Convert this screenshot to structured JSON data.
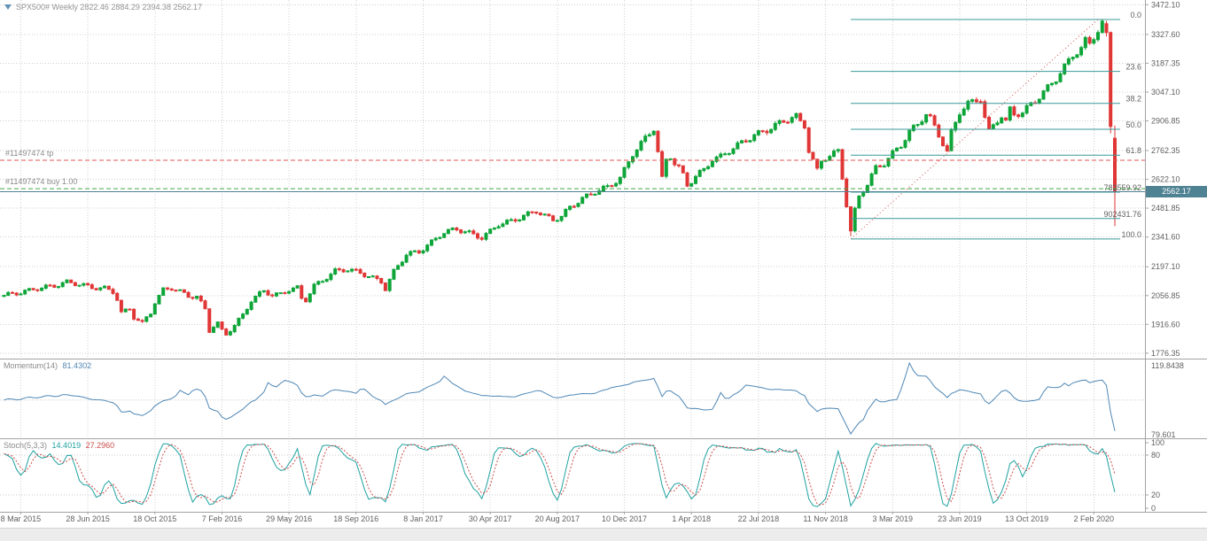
{
  "header": {
    "symbol_line": "SPX500# Weekly 2822.46 2884.29 2394.38 2562.17",
    "text_color": "#949494",
    "marker_color": "#6593b5"
  },
  "chart_data": {
    "type": "candlestick",
    "title": "SPX500# Weekly",
    "grid_color": "#cfcfcf",
    "separator_color": "#a3a3a3",
    "axis_text_color": "#606060",
    "price_axis": {
      "range_min": 1750,
      "range_max": 3495,
      "ticks": [
        "3472.10",
        "3327.60",
        "3187.35",
        "3047.10",
        "2906.85",
        "2762.35",
        "2622.10",
        "2481.85",
        "2341.60",
        "2197.10",
        "2056.85",
        "1916.60",
        "1776.35"
      ],
      "current_price": 2562.17,
      "current_tag": "2562.17",
      "tag_bg": "#4f8292"
    },
    "date_axis": {
      "labels": [
        "8 Mar 2015",
        "28 Jun 2015",
        "18 Oct 2015",
        "7 Feb 2016",
        "29 May 2016",
        "18 Sep 2016",
        "8 Jan 2017",
        "30 Apr 2017",
        "20 Aug 2017",
        "10 Dec 2017",
        "1 Apr 2018",
        "22 Jul 2018",
        "11 Nov 2018",
        "3 Mar 2019",
        "23 Jun 2019",
        "13 Oct 2019",
        "2 Feb 2020"
      ],
      "first_candle_index": 4,
      "index_step": 16
    },
    "candles": {
      "count": 266,
      "up_color": "#0ea539",
      "down_color": "#e03636",
      "last": {
        "open": 2822.46,
        "high": 2884.29,
        "low": 2394.38,
        "close": 2562.17
      },
      "final_candles": [
        [
          3380,
          3393.5,
          3318,
          3337
        ],
        [
          3337,
          3342,
          2846,
          2880
        ],
        [
          2822.46,
          2884.29,
          2394.38,
          2562.17
        ]
      ],
      "overrides": {
        "202": {
          "low": 2346
        }
      },
      "anchors": [
        [
          0,
          2058
        ],
        [
          4,
          2072
        ],
        [
          8,
          2092
        ],
        [
          12,
          2104
        ],
        [
          15,
          2122
        ],
        [
          18,
          2112
        ],
        [
          21,
          2096
        ],
        [
          24,
          2092
        ],
        [
          26,
          2076
        ],
        [
          27,
          2040
        ],
        [
          28,
          1972
        ],
        [
          30,
          1992
        ],
        [
          31,
          1952
        ],
        [
          33,
          1922
        ],
        [
          35,
          1974
        ],
        [
          36,
          2024
        ],
        [
          38,
          2084
        ],
        [
          40,
          2094
        ],
        [
          42,
          2076
        ],
        [
          44,
          2054
        ],
        [
          46,
          2052
        ],
        [
          48,
          1990
        ],
        [
          49,
          1886
        ],
        [
          50,
          1908
        ],
        [
          51,
          1922
        ],
        [
          52,
          1886
        ],
        [
          53,
          1868
        ],
        [
          55,
          1912
        ],
        [
          57,
          1962
        ],
        [
          59,
          2032
        ],
        [
          62,
          2082
        ],
        [
          64,
          2058
        ],
        [
          66,
          2064
        ],
        [
          68,
          2086
        ],
        [
          70,
          2094
        ],
        [
          71,
          2042
        ],
        [
          72,
          2036
        ],
        [
          74,
          2104
        ],
        [
          76,
          2130
        ],
        [
          79,
          2176
        ],
        [
          82,
          2184
        ],
        [
          85,
          2168
        ],
        [
          88,
          2142
        ],
        [
          90,
          2126
        ],
        [
          91,
          2090
        ],
        [
          93,
          2174
        ],
        [
          96,
          2258
        ],
        [
          99,
          2270
        ],
        [
          102,
          2316
        ],
        [
          105,
          2366
        ],
        [
          108,
          2380
        ],
        [
          110,
          2368
        ],
        [
          112,
          2352
        ],
        [
          114,
          2340
        ],
        [
          116,
          2368
        ],
        [
          118,
          2404
        ],
        [
          121,
          2418
        ],
        [
          123,
          2436
        ],
        [
          125,
          2452
        ],
        [
          127,
          2470
        ],
        [
          129,
          2444
        ],
        [
          131,
          2426
        ],
        [
          133,
          2442
        ],
        [
          135,
          2486
        ],
        [
          138,
          2528
        ],
        [
          141,
          2562
        ],
        [
          144,
          2584
        ],
        [
          147,
          2628
        ],
        [
          150,
          2746
        ],
        [
          153,
          2822
        ],
        [
          155,
          2870
        ],
        [
          156,
          2756
        ],
        [
          157,
          2624
        ],
        [
          158,
          2716
        ],
        [
          159,
          2734
        ],
        [
          160,
          2702
        ],
        [
          161,
          2680
        ],
        [
          162,
          2642
        ],
        [
          163,
          2592
        ],
        [
          165,
          2638
        ],
        [
          167,
          2668
        ],
        [
          169,
          2720
        ],
        [
          171,
          2732
        ],
        [
          174,
          2776
        ],
        [
          176,
          2800
        ],
        [
          179,
          2836
        ],
        [
          182,
          2862
        ],
        [
          185,
          2896
        ],
        [
          188,
          2924
        ],
        [
          189,
          2928
        ],
        [
          190,
          2902
        ],
        [
          191,
          2884
        ],
        [
          192,
          2764
        ],
        [
          194,
          2664
        ],
        [
          195,
          2712
        ],
        [
          196,
          2728
        ],
        [
          198,
          2748
        ],
        [
          199,
          2758
        ],
        [
          200,
          2632
        ],
        [
          201,
          2500
        ],
        [
          202,
          2368
        ],
        [
          203,
          2470
        ],
        [
          204,
          2540
        ],
        [
          206,
          2600
        ],
        [
          208,
          2678
        ],
        [
          210,
          2700
        ],
        [
          212,
          2748
        ],
        [
          214,
          2790
        ],
        [
          216,
          2852
        ],
        [
          218,
          2892
        ],
        [
          220,
          2940
        ],
        [
          221,
          2918
        ],
        [
          222,
          2878
        ],
        [
          224,
          2798
        ],
        [
          225,
          2756
        ],
        [
          226,
          2848
        ],
        [
          228,
          2950
        ],
        [
          230,
          2990
        ],
        [
          232,
          3008
        ],
        [
          233,
          3014
        ],
        [
          234,
          2922
        ],
        [
          235,
          2856
        ],
        [
          236,
          2884
        ],
        [
          237,
          2910
        ],
        [
          238,
          2930
        ],
        [
          239,
          2902
        ],
        [
          240,
          2962
        ],
        [
          241,
          2940
        ],
        [
          243,
          2946
        ],
        [
          245,
          2988
        ],
        [
          247,
          3024
        ],
        [
          249,
          3068
        ],
        [
          251,
          3112
        ],
        [
          253,
          3170
        ],
        [
          255,
          3226
        ],
        [
          257,
          3260
        ],
        [
          258,
          3296
        ],
        [
          259,
          3282
        ],
        [
          260,
          3318
        ],
        [
          261,
          3346
        ],
        [
          262,
          3380
        ]
      ]
    },
    "fibonacci": {
      "color": "#3a9898",
      "trend_color": "#d05050",
      "start_index": 202,
      "trend": {
        "from_index": 202,
        "from_price": 2332.0,
        "to_index": 261,
        "to_price": 3400.0
      },
      "levels": [
        {
          "label": "0.0",
          "price": 3400.0
        },
        {
          "label": "23.6",
          "price": 3147.9
        },
        {
          "label": "38.2",
          "price": 2992.0
        },
        {
          "label": "50.0",
          "price": 2866.0
        },
        {
          "label": "61.8",
          "price": 2740.0
        },
        {
          "label": "782559.92",
          "price": 2559.92
        },
        {
          "label": "902431.76",
          "price": 2431.76
        },
        {
          "label": "100.0",
          "price": 2332.0
        }
      ]
    },
    "trade": {
      "tp_label": "#11497474 tp",
      "tp_price": 2715.0,
      "tp_color": "#e05555",
      "buy_label": "#11497474 buy 1.00",
      "buy_price": 2577.0,
      "buy_color": "#46a24a",
      "label_color": "#8a8a8a"
    },
    "indicators": {
      "momentum": {
        "label": "Momentum(14)",
        "value": "81.4302",
        "period": 14,
        "color": "#4f87b5",
        "level": 100,
        "axis_top": "119.8438",
        "axis_bottom": "79.601"
      },
      "stochastic": {
        "label": "Stoch(5,3,3)",
        "value_main": "14.4019",
        "value_signal": "27.2960",
        "color_main": "#1fa1a1",
        "color_signal": "#cf4d4d",
        "levels": [
          80,
          20
        ],
        "axis_ticks": [
          "100",
          "80",
          "20",
          "0"
        ]
      }
    }
  }
}
